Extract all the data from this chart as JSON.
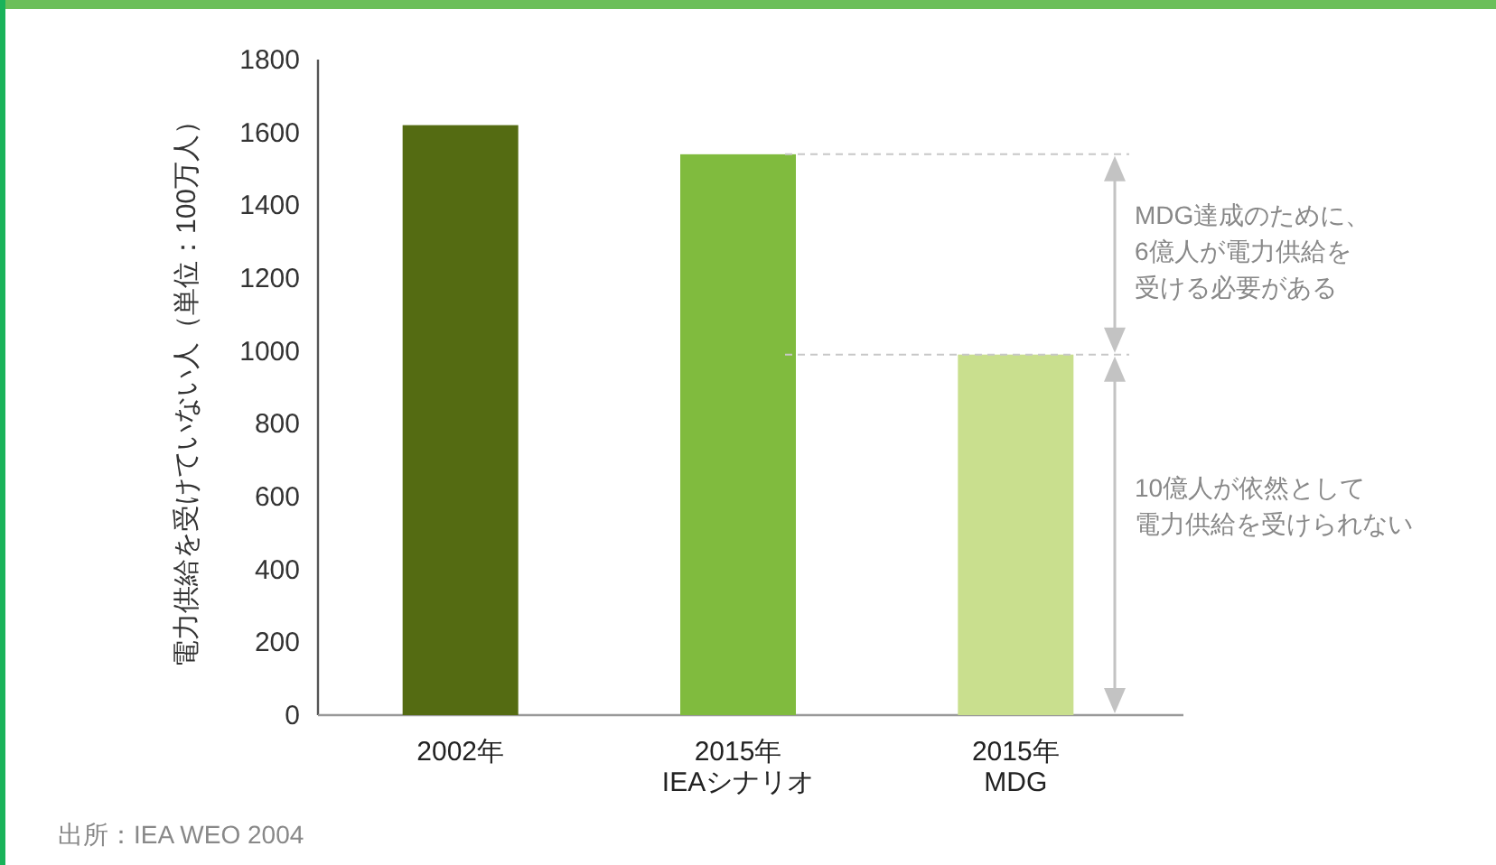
{
  "chart_data": {
    "type": "bar",
    "ylabel": "電力供給を受けていない人（単位：100万人）",
    "categories": [
      "2002年",
      "2015年\nIEAシナリオ",
      "2015年\nMDG"
    ],
    "values": [
      1620,
      1540,
      990
    ],
    "colors": [
      "#546b12",
      "#80bb3e",
      "#c9df8e"
    ],
    "ylim": [
      0,
      1800
    ],
    "yticks": [
      0,
      200,
      400,
      600,
      800,
      1000,
      1200,
      1400,
      1600,
      1800
    ],
    "grid": false,
    "ref_lines": [
      {
        "axis": "y",
        "value": 1540,
        "color": "#c8c8c8",
        "line_style": "dashed"
      },
      {
        "axis": "y",
        "value": 990,
        "color": "#c8c8c8",
        "line_style": "dashed"
      }
    ],
    "annotations": [
      "MDG達成のために、6億人が電力供給を受ける必要がある",
      "10億人が依然として電力供給を受けられない",
      "出所：IEA WEO 2004"
    ]
  }
}
